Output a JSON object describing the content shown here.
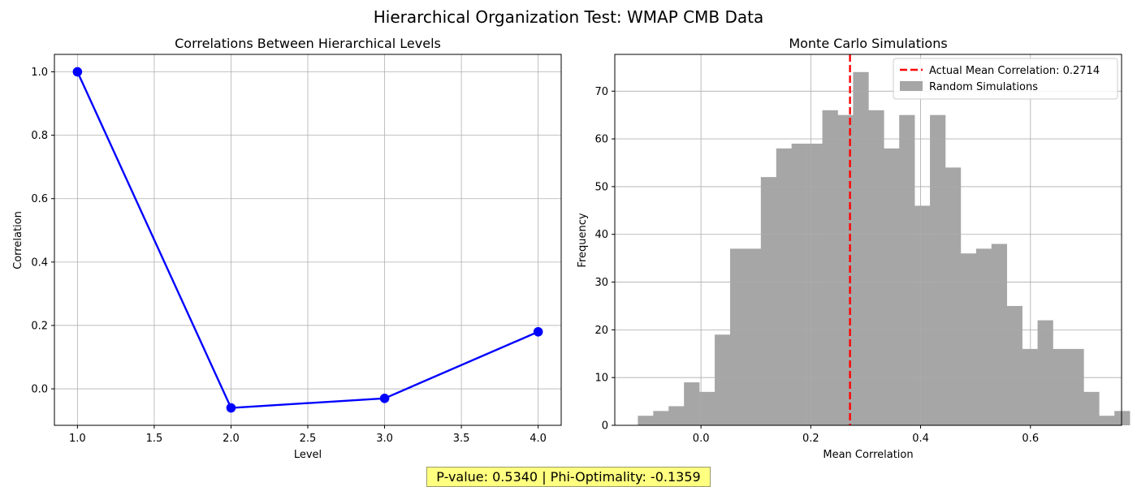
{
  "figure": {
    "suptitle": "Hierarchical Organization Test: WMAP CMB Data",
    "footer": "P-value: 0.5340 | Phi-Optimality: -0.1359"
  },
  "chart_data": [
    {
      "type": "line",
      "title": "Correlations Between Hierarchical Levels",
      "xlabel": "Level",
      "ylabel": "Correlation",
      "x": [
        1.0,
        2.0,
        3.0,
        4.0
      ],
      "y": [
        1.0,
        -0.06,
        -0.03,
        0.18
      ],
      "xlim": [
        0.85,
        4.15
      ],
      "ylim": [
        -0.115,
        1.055
      ],
      "xticks": [
        1.0,
        1.5,
        2.0,
        2.5,
        3.0,
        3.5,
        4.0
      ],
      "xtick_labels": [
        "1.0",
        "1.5",
        "2.0",
        "2.5",
        "3.0",
        "3.5",
        "4.0"
      ],
      "yticks": [
        0.0,
        0.2,
        0.4,
        0.6,
        0.8,
        1.0
      ],
      "ytick_labels": [
        "0.0",
        "0.2",
        "0.4",
        "0.6",
        "0.8",
        "1.0"
      ],
      "grid": true,
      "line_color": "#0000ff",
      "marker": "circle"
    },
    {
      "type": "bar",
      "subtype": "histogram",
      "title": "Monte Carlo Simulations",
      "xlabel": "Mean Correlation",
      "ylabel": "Frequency",
      "bin_start": -0.115,
      "bin_width": 0.028,
      "counts": [
        2,
        3,
        4,
        9,
        7,
        19,
        37,
        37,
        52,
        58,
        59,
        59,
        66,
        65,
        74,
        66,
        58,
        65,
        46,
        65,
        54,
        36,
        37,
        38,
        25,
        16,
        22,
        16,
        16,
        7,
        2,
        3
      ],
      "xlim": [
        -0.157,
        0.766
      ],
      "ylim": [
        0,
        77.7
      ],
      "xticks": [
        0.0,
        0.2,
        0.4,
        0.6
      ],
      "xtick_labels": [
        "0.0",
        "0.2",
        "0.4",
        "0.6"
      ],
      "yticks": [
        0,
        10,
        20,
        30,
        40,
        50,
        60,
        70
      ],
      "ytick_labels": [
        "0",
        "10",
        "20",
        "30",
        "40",
        "50",
        "60",
        "70"
      ],
      "grid": true,
      "bar_color": "#a6a6a6",
      "vline": {
        "x": 0.2714,
        "color": "#ff0000",
        "style": "dashed"
      },
      "legend": {
        "position": "top-right",
        "entries": [
          {
            "label": "Actual Mean Correlation: 0.2714",
            "kind": "line",
            "color": "#ff0000"
          },
          {
            "label": "Random Simulations",
            "kind": "patch",
            "color": "#a6a6a6"
          }
        ]
      }
    }
  ]
}
